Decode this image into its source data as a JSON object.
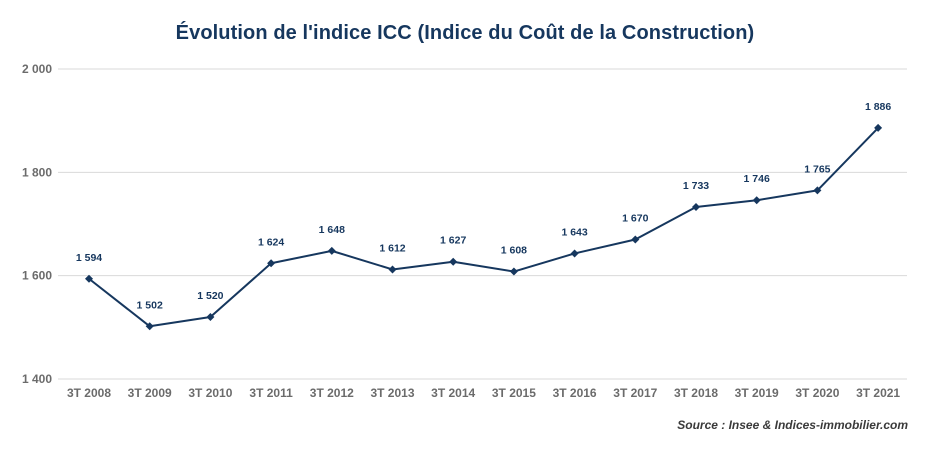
{
  "title": "Évolution de l'indice ICC (Indice du Coût de la Construction)",
  "source": "Source : Insee & Indices-immobilier.com",
  "colors": {
    "line": "#16375e",
    "grid": "#d9d9d9",
    "axis_text": "#6b6b6b"
  },
  "chart_data": {
    "type": "line",
    "title": "Évolution de l'indice ICC (Indice du Coût de la Construction)",
    "xlabel": "",
    "ylabel": "",
    "categories": [
      "3T 2008",
      "3T 2009",
      "3T 2010",
      "3T 2011",
      "3T 2012",
      "3T 2013",
      "3T 2014",
      "3T 2015",
      "3T 2016",
      "3T 2017",
      "3T 2018",
      "3T 2019",
      "3T 2020",
      "3T 2021"
    ],
    "series": [
      {
        "values": [
          1594,
          1502,
          1520,
          1624,
          1648,
          1612,
          1627,
          1608,
          1643,
          1670,
          1733,
          1746,
          1765,
          1886
        ],
        "labels": [
          "1 594",
          "1 502",
          "1 520",
          "1 624",
          "1 648",
          "1 612",
          "1 627",
          "1 608",
          "1 643",
          "1 670",
          "1 733",
          "1 746",
          "1 765",
          "1 886"
        ]
      }
    ],
    "ylim": [
      1400,
      2000
    ],
    "yticks": [
      1400,
      1600,
      1800,
      2000
    ],
    "ytick_labels": [
      "1 400",
      "1 600",
      "1 800",
      "2 000"
    ],
    "grid": true,
    "legend": "none",
    "marker": "diamond"
  }
}
